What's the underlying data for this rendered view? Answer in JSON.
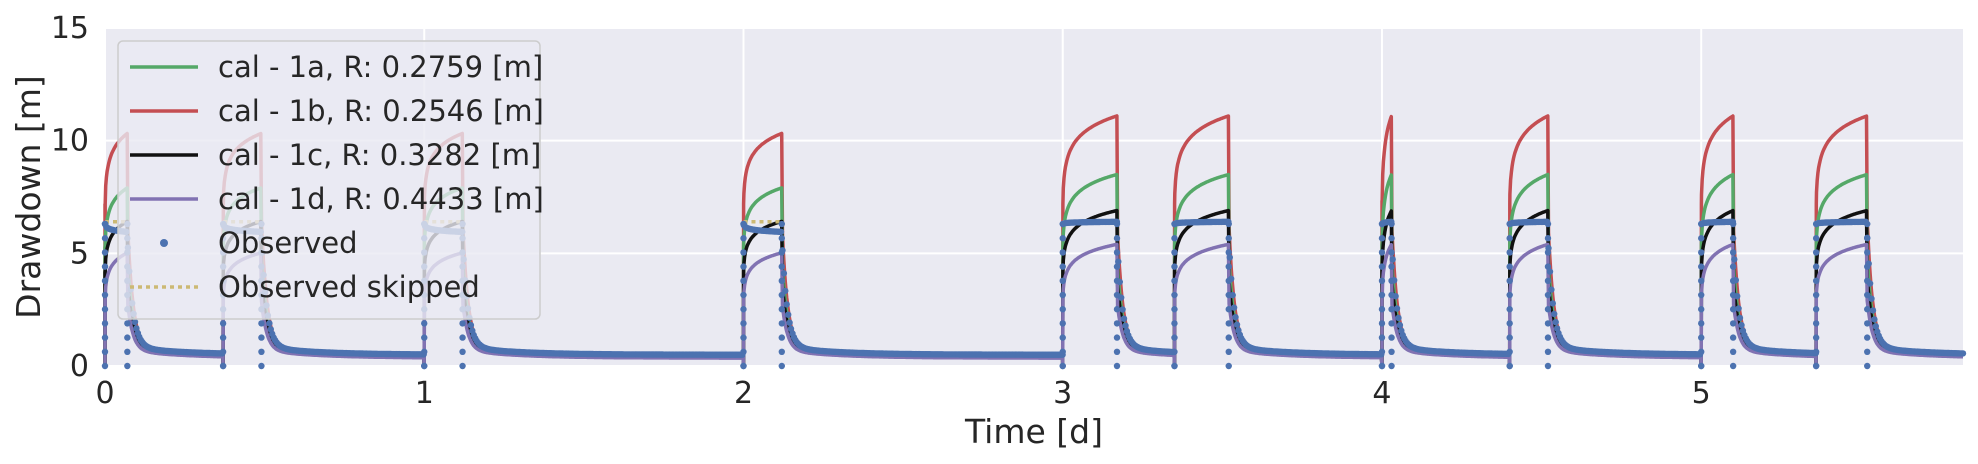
{
  "chart_data": {
    "type": "line",
    "title": "",
    "xlabel": "Time [d]",
    "ylabel": "Drawdown [m]",
    "xlim": [
      0,
      5.82
    ],
    "ylim": [
      0,
      15
    ],
    "xticks": [
      0,
      1,
      2,
      3,
      4,
      5
    ],
    "yticks": [
      0,
      5,
      10,
      15
    ],
    "grid": true,
    "background": "#eaeaf2",
    "legend_position": "upper-left",
    "pumping_periods": [
      {
        "start": 0.0,
        "end": 0.07,
        "late": false
      },
      {
        "start": 0.37,
        "end": 0.49,
        "late": false
      },
      {
        "start": 1.0,
        "end": 1.12,
        "late": false
      },
      {
        "start": 2.0,
        "end": 2.12,
        "late": false
      },
      {
        "start": 3.0,
        "end": 3.17,
        "late": true
      },
      {
        "start": 3.35,
        "end": 3.52,
        "late": true
      },
      {
        "start": 4.0,
        "end": 4.03,
        "late": true
      },
      {
        "start": 4.4,
        "end": 4.52,
        "late": true
      },
      {
        "start": 5.0,
        "end": 5.1,
        "late": true
      },
      {
        "start": 5.36,
        "end": 5.52,
        "late": true
      }
    ],
    "series": [
      {
        "name": "cal - 1a, R: 0.2759 [m]",
        "color": "#55a868",
        "style": "solid",
        "peak": 8.5,
        "rise_base": 5.3,
        "recovery_base": 0.45
      },
      {
        "name": "cal - 1b, R: 0.2546 [m]",
        "color": "#c44e52",
        "style": "solid",
        "peak": 11.1,
        "rise_base": 7.2,
        "recovery_base": 0.5
      },
      {
        "name": "cal - 1c, R: 0.3282 [m]",
        "color": "#111111",
        "style": "solid",
        "peak": 6.9,
        "rise_base": 4.2,
        "recovery_base": 0.45
      },
      {
        "name": "cal - 1d, R: 0.4433 [m]",
        "color": "#8172b2",
        "style": "solid",
        "peak": 5.4,
        "rise_base": 3.0,
        "recovery_base": 0.35
      },
      {
        "name": "Observed",
        "color": "#4c72b0",
        "style": "dots",
        "peak": 6.4,
        "rise_base": 6.3,
        "recovery_base": 0.5
      },
      {
        "name": "Observed skipped",
        "color": "#ccb974",
        "style": "dotted",
        "value": 6.4
      }
    ]
  }
}
